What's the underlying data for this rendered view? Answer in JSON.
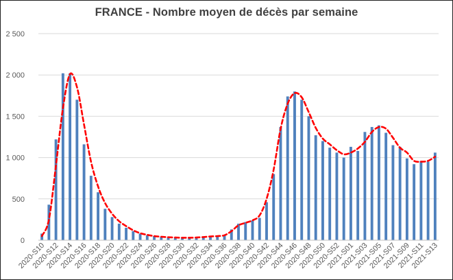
{
  "chart_data": {
    "type": "bar",
    "title": "FRANCE - Nombre moyen de décès par semaine",
    "xlabel": "",
    "ylabel": "",
    "ylim": [
      0,
      2500
    ],
    "yticks": [
      "0",
      "500",
      "1 000",
      "1 500",
      "2 000",
      "2 500"
    ],
    "yticks_values": [
      0,
      500,
      1000,
      1500,
      2000,
      2500
    ],
    "grid": "horizontal",
    "bar_color": "#4f81bd",
    "line_color": "#ff0000",
    "categories": [
      "2020-S10",
      "2020-S11",
      "2020-S12",
      "2020-S13",
      "2020-S14",
      "2020-S15",
      "2020-S16",
      "2020-S17",
      "2020-S18",
      "2020-S19",
      "2020-S20",
      "2020-S21",
      "2020-S22",
      "2020-S23",
      "2020-S24",
      "2020-S25",
      "2020-S26",
      "2020-S27",
      "2020-S28",
      "2020-S29",
      "2020-S30",
      "2020-S31",
      "2020-S32",
      "2020-S33",
      "2020-S34",
      "2020-S35",
      "2020-S36",
      "2020-S37",
      "2020-S38",
      "2020-S39",
      "2020-S40",
      "2020-S41",
      "2020-S42",
      "2020-S43",
      "2020-S44",
      "2020-S45",
      "2020-S46",
      "2020-S47",
      "2020-S48",
      "2020-S49",
      "2020-S50",
      "2020-S51",
      "2020-S52",
      "2020-S53",
      "2021-S01",
      "2021-S02",
      "2021-S03",
      "2021-S04",
      "2021-S05",
      "2021-S06",
      "2021-S07",
      "2021-S08",
      "2021-S09",
      "2021-S10",
      "2021-S11",
      "2021-S12",
      "2021-S13"
    ],
    "xtick_labels": [
      "2020-S10",
      "2020-S12",
      "2020-S14",
      "2020-S16",
      "2020-S18",
      "2020-S20",
      "2020-S22",
      "2020-S24",
      "2020-S26",
      "2020-S28",
      "2020-S30",
      "2020-S32",
      "2020-S34",
      "2020-S36",
      "2020-S38",
      "2020-S40",
      "2020-S42",
      "2020-S44",
      "2020-S46",
      "2020-S48",
      "2020-S50",
      "2020-S52",
      "2021-S01",
      "2021-S03",
      "2021-S05",
      "2021-S07",
      "2021-S09",
      "2021-S11",
      "2021-S13"
    ],
    "series": [
      {
        "type": "bar",
        "values": [
          80,
          430,
          1220,
          2020,
          2020,
          1700,
          1160,
          780,
          580,
          380,
          280,
          200,
          150,
          110,
          80,
          60,
          50,
          40,
          35,
          30,
          30,
          30,
          30,
          40,
          50,
          50,
          60,
          130,
          200,
          220,
          240,
          270,
          460,
          800,
          1370,
          1740,
          1800,
          1700,
          1500,
          1270,
          1200,
          1120,
          1060,
          1000,
          1130,
          1080,
          1310,
          1370,
          1390,
          1300,
          1150,
          1130,
          990,
          920,
          960,
          950,
          1060
        ]
      },
      {
        "type": "line",
        "style": "dashed",
        "values": [
          50,
          250,
          900,
          1600,
          2010,
          1850,
          1400,
          950,
          650,
          450,
          320,
          230,
          170,
          120,
          85,
          65,
          50,
          42,
          36,
          32,
          30,
          30,
          32,
          38,
          45,
          50,
          60,
          110,
          180,
          210,
          240,
          300,
          500,
          850,
          1350,
          1650,
          1780,
          1730,
          1550,
          1360,
          1230,
          1160,
          1090,
          1040,
          1060,
          1110,
          1190,
          1310,
          1370,
          1350,
          1240,
          1120,
          1060,
          960,
          950,
          960,
          1010
        ]
      }
    ]
  }
}
